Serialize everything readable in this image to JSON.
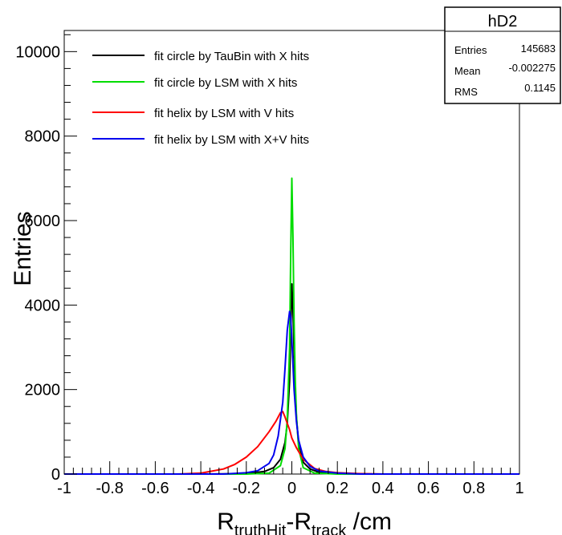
{
  "chart_data": {
    "type": "line",
    "title": "",
    "xlabel_main": "R",
    "xlabel_sub1": "truthHit",
    "xlabel_mid": "-R",
    "xlabel_sub2": "track",
    "xlabel_unit": " /cm",
    "ylabel": "Entries",
    "xlim": [
      -1,
      1
    ],
    "ylim": [
      0,
      10500
    ],
    "x_ticks": [
      "-1",
      "-0.8",
      "-0.6",
      "-0.4",
      "-0.2",
      "0",
      "0.2",
      "0.4",
      "0.6",
      "0.8",
      "1"
    ],
    "y_ticks": [
      "0",
      "2000",
      "4000",
      "6000",
      "8000",
      "10000"
    ],
    "grid": false,
    "legend_position": "top-left",
    "stats_box": {
      "title": "hD2",
      "rows": [
        {
          "label": "Entries",
          "value": "145683"
        },
        {
          "label": "Mean",
          "value": "-0.002275"
        },
        {
          "label": "RMS",
          "value": "0.1145"
        }
      ]
    },
    "series": [
      {
        "name": "fit circle by TauBin with X hits",
        "color": "#000000",
        "x": [
          -1,
          -0.4,
          -0.2,
          -0.12,
          -0.08,
          -0.05,
          -0.03,
          -0.02,
          -0.01,
          -0.005,
          0,
          0.005,
          0.01,
          0.015,
          0.02,
          0.03,
          0.05,
          0.08,
          0.12,
          0.2,
          0.4,
          1
        ],
        "y": [
          0,
          0,
          10,
          60,
          150,
          350,
          750,
          1200,
          2200,
          3300,
          4500,
          3900,
          2900,
          2000,
          1350,
          700,
          280,
          120,
          40,
          10,
          0,
          0
        ]
      },
      {
        "name": "fit circle by LSM with X hits",
        "color": "#00dd00",
        "x": [
          -1,
          -0.2,
          -0.1,
          -0.05,
          -0.03,
          -0.02,
          -0.01,
          -0.005,
          0,
          0.005,
          0.01,
          0.015,
          0.02,
          0.03,
          0.05,
          0.1,
          0.2,
          1
        ],
        "y": [
          0,
          0,
          20,
          200,
          600,
          1300,
          3000,
          5200,
          7000,
          5600,
          3600,
          2200,
          1400,
          600,
          150,
          20,
          0,
          0
        ]
      },
      {
        "name": "fit helix by LSM with V hits",
        "color": "#ff0000",
        "x": [
          -1,
          -0.5,
          -0.4,
          -0.3,
          -0.25,
          -0.2,
          -0.15,
          -0.1,
          -0.07,
          -0.05,
          -0.04,
          -0.03,
          -0.02,
          -0.01,
          0,
          0.02,
          0.05,
          0.1,
          0.15,
          0.2,
          0.3,
          0.4,
          0.5,
          1
        ],
        "y": [
          0,
          0,
          20,
          120,
          230,
          400,
          650,
          1000,
          1250,
          1450,
          1480,
          1350,
          1200,
          1050,
          850,
          620,
          350,
          130,
          60,
          30,
          10,
          0,
          0,
          0
        ]
      },
      {
        "name": "fit helix by LSM with X+V hits",
        "color": "#0000ee",
        "x": [
          -1,
          -0.3,
          -0.2,
          -0.15,
          -0.1,
          -0.08,
          -0.06,
          -0.04,
          -0.03,
          -0.02,
          -0.01,
          -0.005,
          0,
          0.005,
          0.01,
          0.02,
          0.03,
          0.05,
          0.08,
          0.12,
          0.2,
          0.3,
          1
        ],
        "y": [
          0,
          0,
          30,
          80,
          250,
          450,
          900,
          1700,
          2500,
          3400,
          3850,
          3700,
          3200,
          2600,
          2000,
          1250,
          800,
          400,
          180,
          70,
          20,
          0,
          0
        ]
      }
    ]
  }
}
